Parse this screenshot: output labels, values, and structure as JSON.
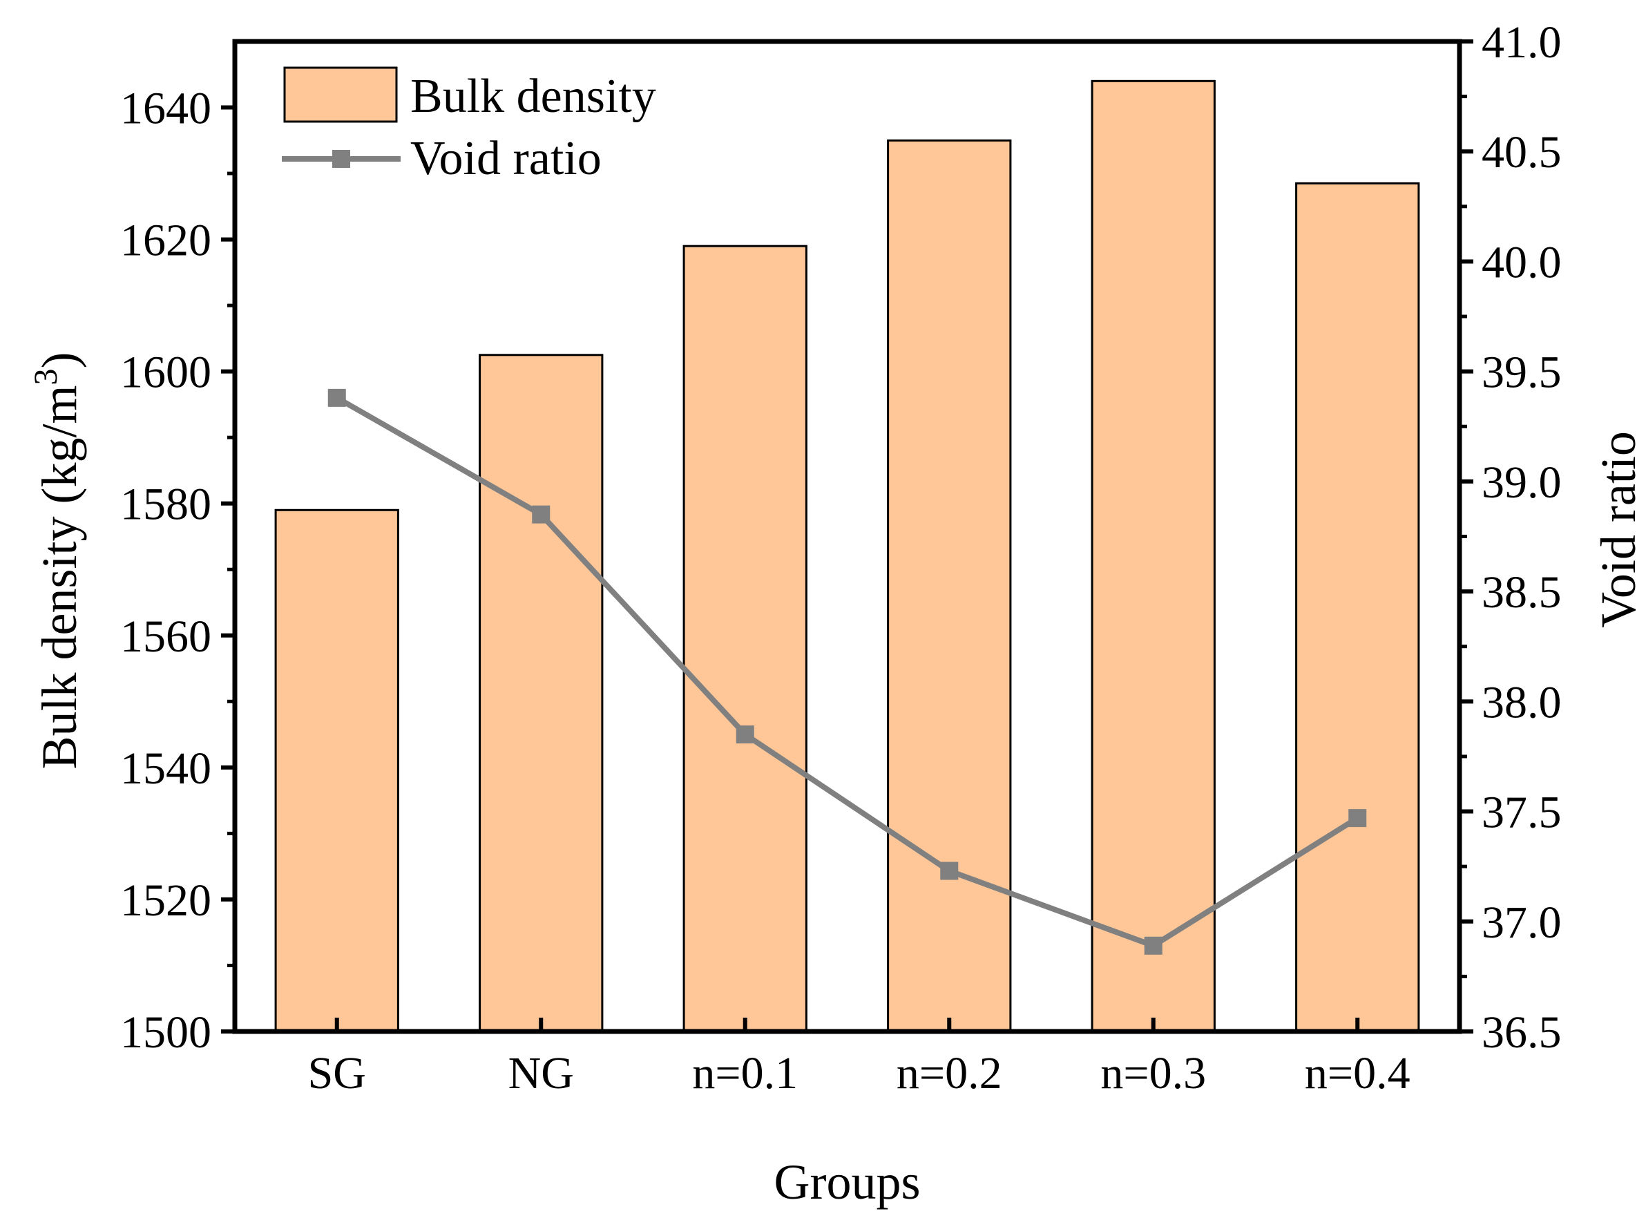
{
  "chart_data": {
    "type": "bar",
    "categories": [
      "SG",
      "NG",
      "n=0.1",
      "n=0.2",
      "n=0.3",
      "n=0.4"
    ],
    "series": [
      {
        "name": "Bulk density",
        "type": "bar",
        "axis": "left",
        "color": "#FFC797",
        "values": [
          1579,
          1602.5,
          1619,
          1635,
          1644,
          1628.5
        ]
      },
      {
        "name": "Void ratio",
        "type": "line",
        "axis": "right",
        "color": "#808080",
        "values": [
          39.38,
          38.85,
          37.85,
          37.23,
          36.89,
          37.47
        ]
      }
    ],
    "xlabel": "Groups",
    "ylabel_left": {
      "main": "Bulk density (kg/m",
      "sup": "3",
      "close": ")"
    },
    "ylabel_right": "Void ratio",
    "ylim_left": [
      1500,
      1650
    ],
    "yticks_left": [
      1500,
      1520,
      1540,
      1560,
      1580,
      1600,
      1620,
      1640
    ],
    "yticks_left_labels": [
      "1500",
      "1520",
      "1540",
      "1560",
      "1580",
      "1600",
      "1620",
      "1640"
    ],
    "ylim_right": [
      36.5,
      41.0
    ],
    "yticks_right": [
      36.5,
      37.0,
      37.5,
      38.0,
      38.5,
      39.0,
      39.5,
      40.0,
      40.5,
      41.0
    ],
    "yticks_right_labels": [
      "36.5",
      "37.0",
      "37.5",
      "38.0",
      "38.5",
      "39.0",
      "39.5",
      "40.0",
      "40.5",
      "41.0"
    ],
    "legend_position": "top-left",
    "grid": false
  }
}
